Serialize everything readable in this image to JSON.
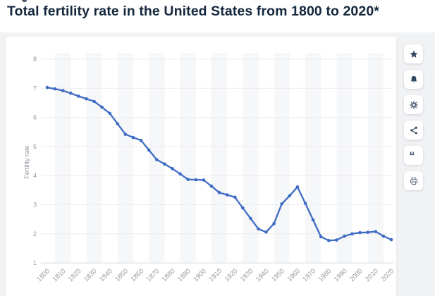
{
  "page": {
    "title": "Total fertility rate in the United States from 1800 to 2020*"
  },
  "toolbar": {
    "buttons": [
      {
        "name": "favorite",
        "icon": "star-icon"
      },
      {
        "name": "notifications",
        "icon": "bell-icon"
      },
      {
        "name": "settings",
        "icon": "gear-icon"
      },
      {
        "name": "share",
        "icon": "share-icon"
      },
      {
        "name": "cite",
        "icon": "quote-icon"
      },
      {
        "name": "print",
        "icon": "printer-icon"
      }
    ]
  },
  "colors": {
    "line_blue": "#3e6cc4",
    "title_navy": "#15273d",
    "page_background": "#f1f2f4",
    "plot_band": "#f6f7f8",
    "gridline": "#ececee",
    "axis_line": "#dcdee0",
    "tick_text": "#97999c",
    "icon_dark": "#31465f",
    "icon_gray": "#57687c"
  },
  "chart_data": {
    "type": "line",
    "title": "Total fertility rate in the United States from 1800 to 2020*",
    "xlabel": "",
    "ylabel": "Fertility rate",
    "ylim": [
      1,
      8
    ],
    "y_ticks": [
      1,
      2,
      3,
      4,
      5,
      6,
      7,
      8
    ],
    "x_ticks": [
      1800,
      1810,
      1820,
      1830,
      1840,
      1850,
      1860,
      1870,
      1880,
      1890,
      1900,
      1910,
      1920,
      1930,
      1940,
      1950,
      1960,
      1970,
      1980,
      1990,
      2000,
      2010,
      2020
    ],
    "grid": "horizontal",
    "legend": "none",
    "series": [
      {
        "name": "Fertility rate",
        "x": [
          1800,
          1805,
          1810,
          1815,
          1820,
          1825,
          1830,
          1835,
          1840,
          1845,
          1850,
          1855,
          1860,
          1865,
          1870,
          1875,
          1880,
          1885,
          1890,
          1895,
          1900,
          1905,
          1910,
          1915,
          1920,
          1925,
          1930,
          1935,
          1940,
          1945,
          1950,
          1955,
          1960,
          1965,
          1970,
          1975,
          1980,
          1985,
          1990,
          1995,
          2000,
          2005,
          2010,
          2015,
          2020
        ],
        "values": [
          7.03,
          6.98,
          6.92,
          6.83,
          6.73,
          6.64,
          6.55,
          6.35,
          6.14,
          5.78,
          5.42,
          5.31,
          5.21,
          4.88,
          4.55,
          4.4,
          4.24,
          4.06,
          3.87,
          3.86,
          3.85,
          3.64,
          3.42,
          3.34,
          3.26,
          2.89,
          2.53,
          2.17,
          2.06,
          2.35,
          3.03,
          3.31,
          3.61,
          3.05,
          2.48,
          1.9,
          1.77,
          1.79,
          1.92,
          2.0,
          2.04,
          2.05,
          2.08,
          1.92,
          1.8
        ]
      }
    ]
  }
}
